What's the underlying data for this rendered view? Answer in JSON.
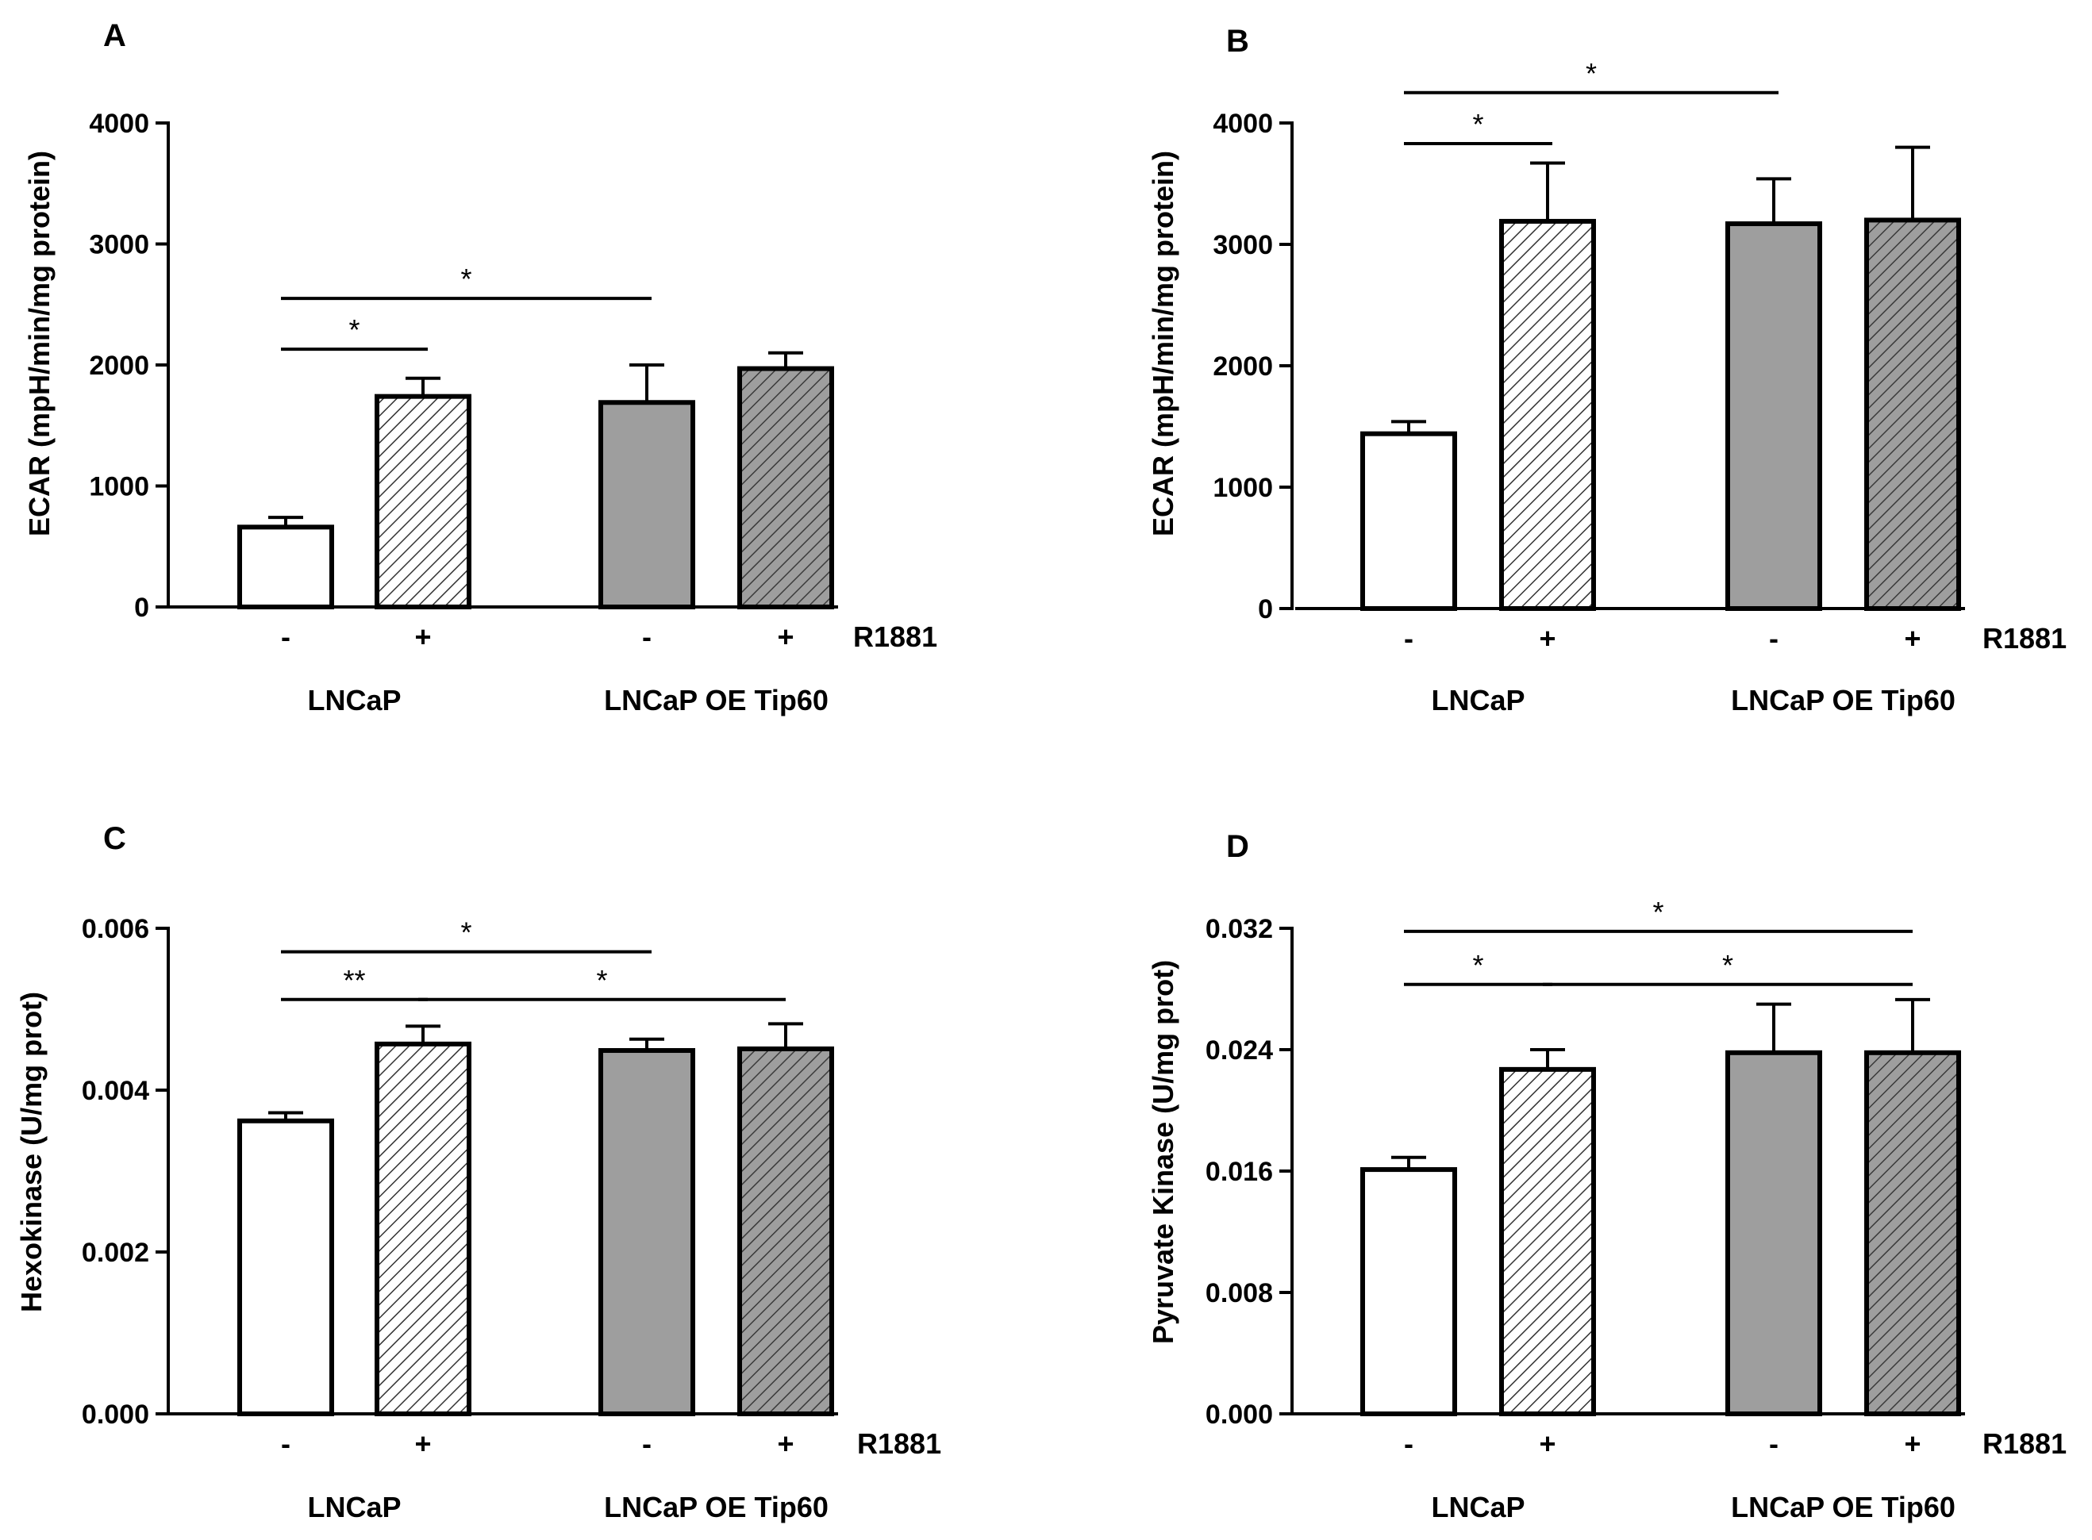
{
  "figure": {
    "colors": {
      "ink": "#000000",
      "white_bar": "#ffffff",
      "gray_bar": "#9e9e9e",
      "background": "#ffffff"
    },
    "fill_legend": [
      "white",
      "hatched",
      "gray",
      "gray-hatched"
    ]
  },
  "chart_data": [
    {
      "panel": "A",
      "type": "bar",
      "ylabel": "ECAR (mpH/min/mg protein)",
      "ylim": [
        0,
        4000
      ],
      "ticks": [
        "0",
        "1000",
        "2000",
        "3000",
        "4000"
      ],
      "tick_values": [
        0,
        1000,
        2000,
        3000,
        4000
      ],
      "treatment_label": "R1881",
      "groups": [
        "LNCaP",
        "LNCaP OE Tip60"
      ],
      "conditions": [
        "-",
        "+",
        "-",
        "+"
      ],
      "values": [
        660,
        1740,
        1690,
        1970
      ],
      "errors": [
        80,
        150,
        310,
        130
      ],
      "fills": [
        "white",
        "hatched",
        "gray",
        "gray-hatched"
      ],
      "significance": [
        {
          "from": 0,
          "to": 1,
          "label": "*",
          "y": 2130
        },
        {
          "from": 0,
          "to": 2,
          "label": "*",
          "y": 2550
        }
      ]
    },
    {
      "panel": "B",
      "type": "bar",
      "ylabel": "ECAR (mpH/min/mg protein)",
      "ylim": [
        0,
        4000
      ],
      "ticks": [
        "0",
        "1000",
        "2000",
        "3000",
        "4000"
      ],
      "tick_values": [
        0,
        1000,
        2000,
        3000,
        4000
      ],
      "treatment_label": "R1881",
      "groups": [
        "LNCaP",
        "LNCaP OE Tip60"
      ],
      "conditions": [
        "-",
        "+",
        "-",
        "+"
      ],
      "values": [
        1440,
        3190,
        3170,
        3200
      ],
      "errors": [
        100,
        480,
        370,
        600
      ],
      "fills": [
        "white",
        "hatched",
        "gray",
        "gray-hatched"
      ],
      "significance": [
        {
          "from": 0,
          "to": 1,
          "label": "*",
          "y": 3830
        },
        {
          "from": 0,
          "to": 2,
          "label": "*",
          "y": 4250
        }
      ]
    },
    {
      "panel": "C",
      "type": "bar",
      "ylabel": "Hexokinase (U/mg prot)",
      "ylim": [
        0,
        0.006
      ],
      "ticks": [
        "0.000",
        "0.002",
        "0.004",
        "0.006"
      ],
      "tick_values": [
        0,
        0.002,
        0.004,
        0.006
      ],
      "treatment_label": "R1881",
      "groups": [
        "LNCaP",
        "LNCaP OE Tip60"
      ],
      "conditions": [
        "-",
        "+",
        "-",
        "+"
      ],
      "values": [
        0.00362,
        0.00457,
        0.00449,
        0.00451
      ],
      "errors": [
        0.0001,
        0.00022,
        0.00014,
        0.00031
      ],
      "fills": [
        "white",
        "hatched",
        "gray",
        "gray-hatched"
      ],
      "significance": [
        {
          "from": 0,
          "to": 1,
          "label": "**",
          "y": 0.00512
        },
        {
          "from": 0,
          "to": 2,
          "label": "*",
          "y": 0.00571
        },
        {
          "from": 1,
          "to": 3,
          "label": "*",
          "y": 0.00512
        }
      ]
    },
    {
      "panel": "D",
      "type": "bar",
      "ylabel": "Pyruvate Kinase (U/mg prot)",
      "ylim": [
        0,
        0.032
      ],
      "ticks": [
        "0.000",
        "0.008",
        "0.016",
        "0.024",
        "0.032"
      ],
      "tick_values": [
        0,
        0.008,
        0.016,
        0.024,
        0.032
      ],
      "treatment_label": "R1881",
      "groups": [
        "LNCaP",
        "LNCaP OE Tip60"
      ],
      "conditions": [
        "-",
        "+",
        "-",
        "+"
      ],
      "values": [
        0.0161,
        0.0227,
        0.0238,
        0.0238
      ],
      "errors": [
        0.0008,
        0.0013,
        0.0032,
        0.0035
      ],
      "fills": [
        "white",
        "hatched",
        "gray",
        "gray-hatched"
      ],
      "significance": [
        {
          "from": 0,
          "to": 1,
          "label": "*",
          "y": 0.0283
        },
        {
          "from": 0,
          "to": 3,
          "label": "*",
          "y": 0.0318
        },
        {
          "from": 1,
          "to": 3,
          "label": "*",
          "y": 0.0283
        }
      ]
    }
  ]
}
